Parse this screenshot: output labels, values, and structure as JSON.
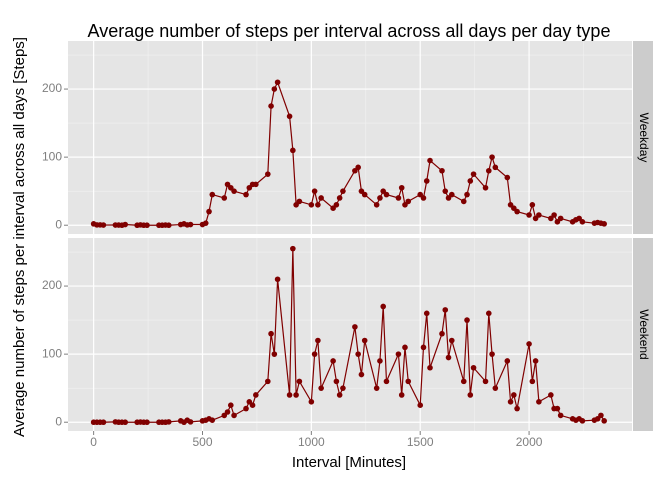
{
  "chart_data": {
    "type": "line",
    "title": "Average number of steps per interval across all days per day type",
    "x_label": "Interval [Minutes]",
    "y_label": "Average number of steps per interval across all days [Steps]",
    "x": [
      0,
      15,
      30,
      45,
      100,
      115,
      130,
      145,
      200,
      215,
      230,
      245,
      300,
      315,
      330,
      345,
      400,
      415,
      430,
      445,
      500,
      515,
      530,
      545,
      600,
      615,
      630,
      645,
      700,
      715,
      730,
      745,
      800,
      815,
      830,
      845,
      900,
      915,
      930,
      945,
      1000,
      1015,
      1030,
      1045,
      1100,
      1115,
      1130,
      1145,
      1200,
      1215,
      1230,
      1245,
      1300,
      1315,
      1330,
      1345,
      1400,
      1415,
      1430,
      1445,
      1500,
      1515,
      1530,
      1545,
      1600,
      1615,
      1630,
      1645,
      1700,
      1715,
      1730,
      1745,
      1800,
      1815,
      1830,
      1845,
      1900,
      1915,
      1930,
      1945,
      2000,
      2015,
      2030,
      2045,
      2100,
      2115,
      2130,
      2145,
      2200,
      2215,
      2230,
      2245,
      2300,
      2315,
      2330,
      2345
    ],
    "series": [
      {
        "name": "Weekday",
        "color": "#800000",
        "values": [
          2,
          0.5,
          0.5,
          0.2,
          0.3,
          0.2,
          0,
          1,
          0,
          0.5,
          0,
          0,
          0,
          0,
          0.3,
          0,
          1,
          2,
          0.5,
          1,
          1,
          3,
          20,
          45,
          40,
          60,
          55,
          50,
          45,
          55,
          60,
          60,
          75,
          175,
          200,
          210,
          160,
          110,
          30,
          35,
          30,
          50,
          30,
          40,
          25,
          30,
          40,
          50,
          80,
          85,
          50,
          45,
          30,
          40,
          50,
          45,
          40,
          55,
          30,
          35,
          45,
          40,
          65,
          95,
          80,
          50,
          40,
          45,
          35,
          45,
          65,
          75,
          55,
          80,
          100,
          85,
          70,
          30,
          25,
          20,
          15,
          30,
          10,
          15,
          10,
          15,
          5,
          10,
          5,
          8,
          10,
          5,
          3,
          4,
          3,
          2
        ]
      },
      {
        "name": "Weekend",
        "color": "#800000",
        "values": [
          0,
          0,
          0,
          0,
          0.5,
          0,
          0,
          0,
          0,
          0.3,
          0,
          0,
          0,
          0,
          0,
          0.5,
          2,
          0,
          3,
          0.5,
          2,
          3,
          5,
          3,
          10,
          15,
          25,
          10,
          20,
          30,
          25,
          40,
          60,
          130,
          100,
          210,
          40,
          255,
          40,
          60,
          30,
          100,
          120,
          50,
          90,
          60,
          40,
          50,
          140,
          100,
          70,
          120,
          50,
          90,
          170,
          60,
          100,
          40,
          110,
          60,
          25,
          110,
          160,
          80,
          130,
          165,
          95,
          120,
          60,
          150,
          40,
          80,
          60,
          160,
          100,
          50,
          90,
          30,
          40,
          20,
          115,
          60,
          90,
          30,
          40,
          20,
          20,
          10,
          5,
          3,
          5,
          2,
          3,
          5,
          10,
          2
        ]
      }
    ],
    "xlim": [
      -117.75,
      2472.75
    ],
    "xticks": [
      0,
      500,
      1000,
      1500,
      2000
    ],
    "x_minor_ticks": [
      250,
      750,
      1250,
      1750,
      2250
    ],
    "ylim": [
      -12.9,
      270.6
    ],
    "yticks": [
      0,
      100,
      200
    ],
    "y_minor_ticks": [
      50,
      150,
      250
    ],
    "grid": true
  }
}
